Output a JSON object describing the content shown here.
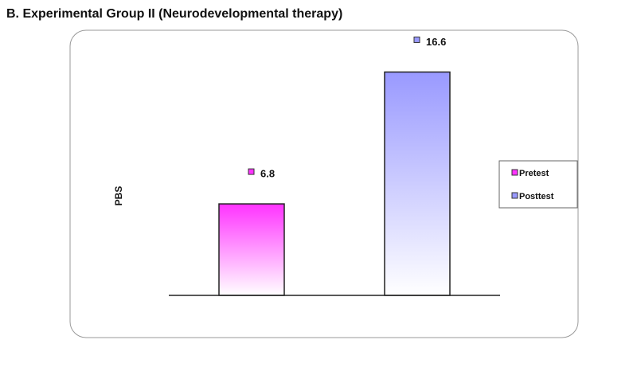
{
  "chart_data": {
    "type": "bar",
    "title": "B. Experimental Group II (Neurodevelopmental therapy)",
    "y_label": "PBS",
    "series": [
      {
        "name": "Pretest",
        "color": "#ff33ff",
        "values": [
          6.8
        ]
      },
      {
        "name": "Posttest",
        "color": "#9999ff",
        "values": [
          16.6
        ]
      }
    ],
    "ylim": [
      0,
      20
    ],
    "legend": "right"
  }
}
